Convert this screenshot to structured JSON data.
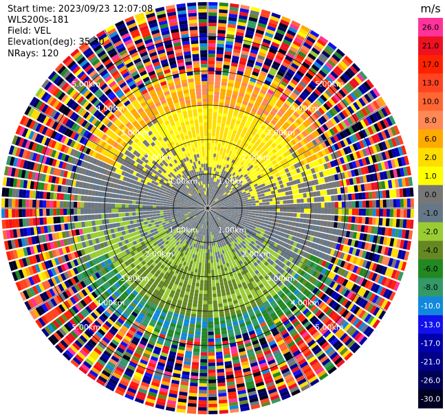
{
  "header": {
    "start_time": "Start time: 2023/09/23 12:07:08",
    "instrument": "WLS200s-181",
    "field": "Field: VEL",
    "elevation": "Elevation(deg): 35.30",
    "nrays": "NRays: 120"
  },
  "chart_data": {
    "type": "heatmap",
    "projection": "polar-ppi",
    "field": "VEL",
    "units": "m/s",
    "n_rays": 120,
    "elevation_deg": 35.3,
    "max_range_km": 6.0,
    "range_rings_km": [
      1.0,
      2.0,
      3.0,
      4.0,
      5.0
    ],
    "range_ring_labels": [
      "1.00km",
      "2.00km",
      "3.00km",
      "4.00km",
      "5.00km"
    ],
    "colorbar": {
      "unit_label": "m/s",
      "ticks": [
        "26.0",
        "21.0",
        "17.0",
        "13.0",
        "10.0",
        "8.0",
        "6.0",
        "2.0",
        "1.0",
        "0.0",
        "-1.0",
        "-2.0",
        "-4.0",
        "-6.0",
        "-8.0",
        "-10.0",
        "-13.0",
        "-17.0",
        "-21.0",
        "-26.0",
        "-30.0"
      ],
      "colors": [
        "#ff3399",
        "#ee1122",
        "#ff2200",
        "#ff4422",
        "#ff6633",
        "#ff8855",
        "#ffaa00",
        "#ffdd00",
        "#ffff00",
        "#777777",
        "#667788",
        "#99cc33",
        "#668822",
        "#228822",
        "#339966",
        "#1188dd",
        "#1111ee",
        "#0000aa",
        "#000088",
        "#000055",
        "#000022"
      ]
    },
    "pattern_description_values": {
      "near_field_zero_band_km": [
        0.0,
        1.5
      ],
      "positive_sector_deg": [
        300,
        60
      ],
      "negative_sector_deg": [
        120,
        240
      ],
      "noise_beyond_km": 4.0
    }
  }
}
